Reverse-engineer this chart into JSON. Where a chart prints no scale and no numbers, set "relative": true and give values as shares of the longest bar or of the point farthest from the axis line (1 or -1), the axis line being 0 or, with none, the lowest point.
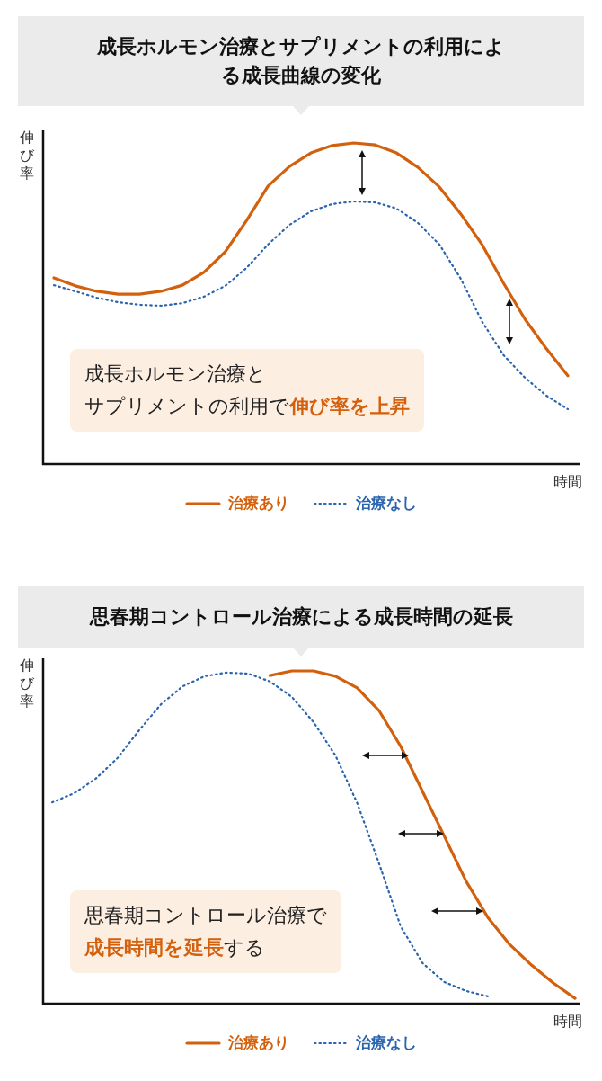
{
  "chart_data": [
    {
      "type": "line",
      "title": "成長ホルモン治療とサプリメントの利用による成長曲線の変化",
      "ylabel": "伸び率",
      "xlabel": "時間",
      "relative": true,
      "legend": "bottom",
      "categories": [
        null,
        null,
        null,
        null,
        null,
        null,
        null,
        null,
        null,
        null,
        null,
        null,
        null,
        null,
        null,
        null,
        null,
        null,
        null,
        null,
        null,
        null,
        null,
        null,
        null
      ],
      "series": [
        {
          "name": "治療あり",
          "color": "#d3600c",
          "line_style": "solid",
          "values": [
            0.58,
            0.555,
            0.538,
            0.529,
            0.529,
            0.538,
            0.557,
            0.597,
            0.661,
            0.759,
            0.866,
            0.927,
            0.969,
            0.992,
            1,
            0.994,
            0.969,
            0.924,
            0.863,
            0.779,
            0.683,
            0.563,
            0.451,
            0.359,
            0.275
          ]
        },
        {
          "name": "治療なし",
          "color": "#2b65ad",
          "line_style": "dotted",
          "values": [
            0.557,
            0.538,
            0.518,
            0.504,
            0.496,
            0.493,
            0.501,
            0.521,
            0.555,
            0.611,
            0.684,
            0.745,
            0.787,
            0.81,
            0.818,
            0.815,
            0.796,
            0.751,
            0.684,
            0.577,
            0.443,
            0.339,
            0.269,
            0.213,
            0.171
          ]
        }
      ],
      "annotations": [
        "成長ホルモン治療と",
        "サプリメントの利用で",
        "伸び率を上昇"
      ]
    },
    {
      "type": "line",
      "title": "思春期コントロール治療による成長時間の延長",
      "ylabel": "伸び率",
      "xlabel": "時間",
      "relative": true,
      "legend": "bottom",
      "categories": [
        null,
        null,
        null,
        null,
        null,
        null,
        null,
        null,
        null,
        null,
        null,
        null,
        null,
        null,
        null,
        null,
        null,
        null,
        null,
        null,
        null,
        null,
        null,
        null,
        null
      ],
      "series": [
        {
          "name": "治療あり",
          "color": "#d3600c",
          "line_style": "solid",
          "values": [
            null,
            null,
            null,
            null,
            null,
            null,
            null,
            null,
            null,
            null,
            0.986,
            1,
            1,
            0.984,
            0.949,
            0.881,
            0.773,
            0.638,
            0.503,
            0.368,
            0.259,
            0.178,
            0.116,
            0.062,
            0.016
          ]
        },
        {
          "name": "治療なし",
          "color": "#2b65ad",
          "line_style": "dotted",
          "values": [
            0.605,
            0.632,
            0.676,
            0.738,
            0.822,
            0.9,
            0.954,
            0.984,
            0.995,
            0.992,
            0.968,
            0.922,
            0.846,
            0.746,
            0.603,
            0.422,
            0.232,
            0.122,
            0.065,
            0.038,
            0.022,
            null,
            null,
            null,
            null
          ]
        }
      ],
      "annotations": [
        "思春期コントロール治療で",
        "成長時間を延長",
        "する"
      ]
    }
  ]
}
